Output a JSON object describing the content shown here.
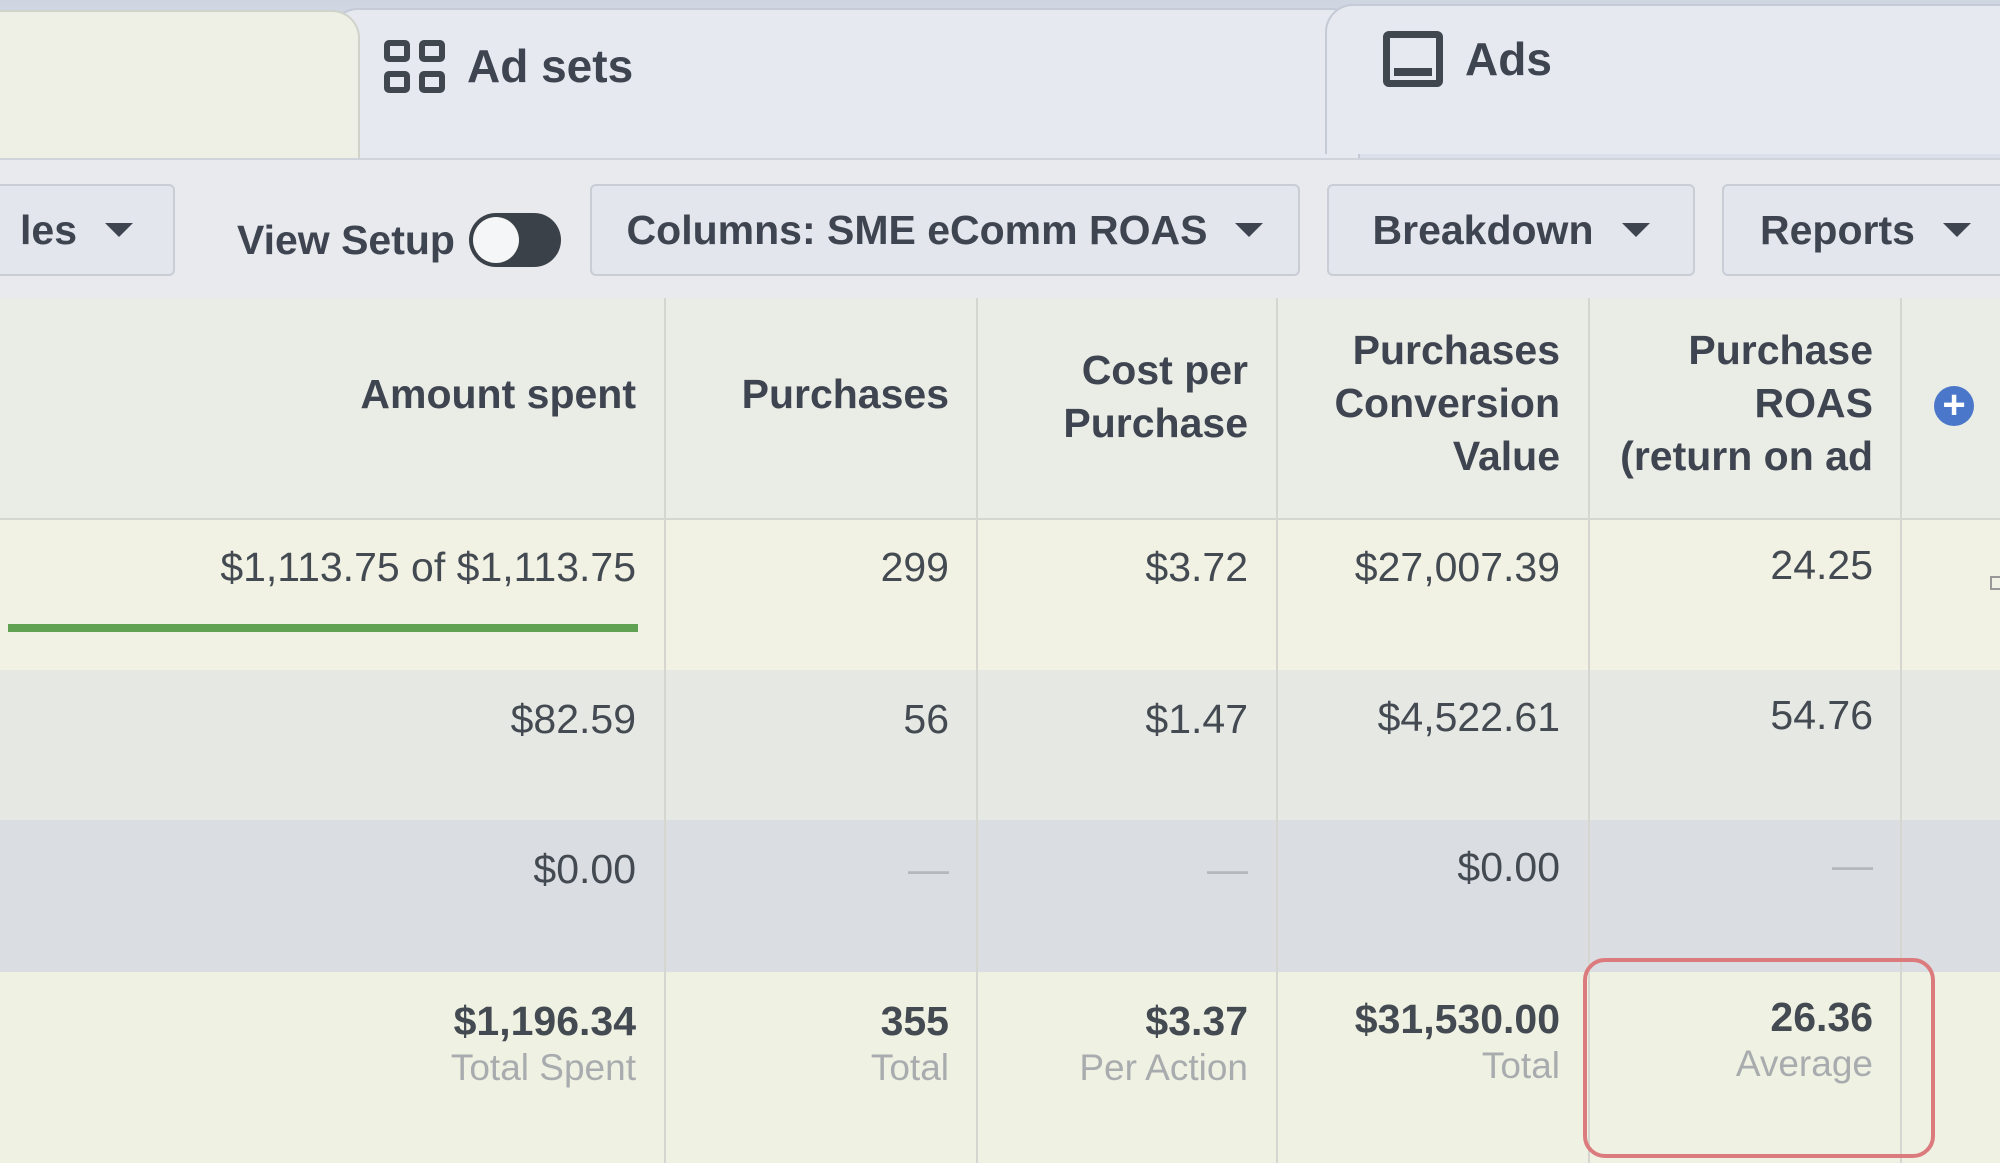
{
  "tabs": {
    "ad_sets": "Ad sets",
    "ads": "Ads"
  },
  "toolbar": {
    "rules_label": "les",
    "view_setup_label": "View Setup",
    "columns_label": "Columns: SME eComm ROAS",
    "breakdown_label": "Breakdown",
    "reports_label": "Reports"
  },
  "table": {
    "headers": {
      "amount_spent": "Amount spent",
      "purchases": "Purchases",
      "cost_per_purchase_1": "Cost per",
      "cost_per_purchase_2": "Purchase",
      "conv_value_1": "Purchases",
      "conv_value_2": "Conversion",
      "conv_value_3": "Value",
      "roas_1": "Purchase",
      "roas_2": "ROAS",
      "roas_3": "(return on ad"
    },
    "rows": [
      {
        "amount_spent": "$1,113.75 of $1,113.75",
        "purchases": "299",
        "cost_per_purchase": "$3.72",
        "conversion_value": "$27,007.39",
        "roas": "24.25",
        "budget_progress": 1.0
      },
      {
        "amount_spent": "$82.59",
        "purchases": "56",
        "cost_per_purchase": "$1.47",
        "conversion_value": "$4,522.61",
        "roas": "54.76"
      },
      {
        "amount_spent": "$0.00",
        "purchases": "—",
        "cost_per_purchase": "—",
        "conversion_value": "$0.00",
        "roas": "—"
      }
    ],
    "totals": {
      "amount_spent": "$1,196.34",
      "amount_spent_sub": "Total Spent",
      "purchases": "355",
      "purchases_sub": "Total",
      "cost_per_purchase": "$3.37",
      "cost_per_purchase_sub": "Per Action",
      "conversion_value": "$31,530.00",
      "conversion_value_sub": "Total",
      "roas": "26.36",
      "roas_sub": "Average"
    }
  },
  "colors": {
    "progress_bar": "#61a252",
    "highlight_outline": "#db7b7e",
    "add_column_icon": "#4a77c9"
  }
}
